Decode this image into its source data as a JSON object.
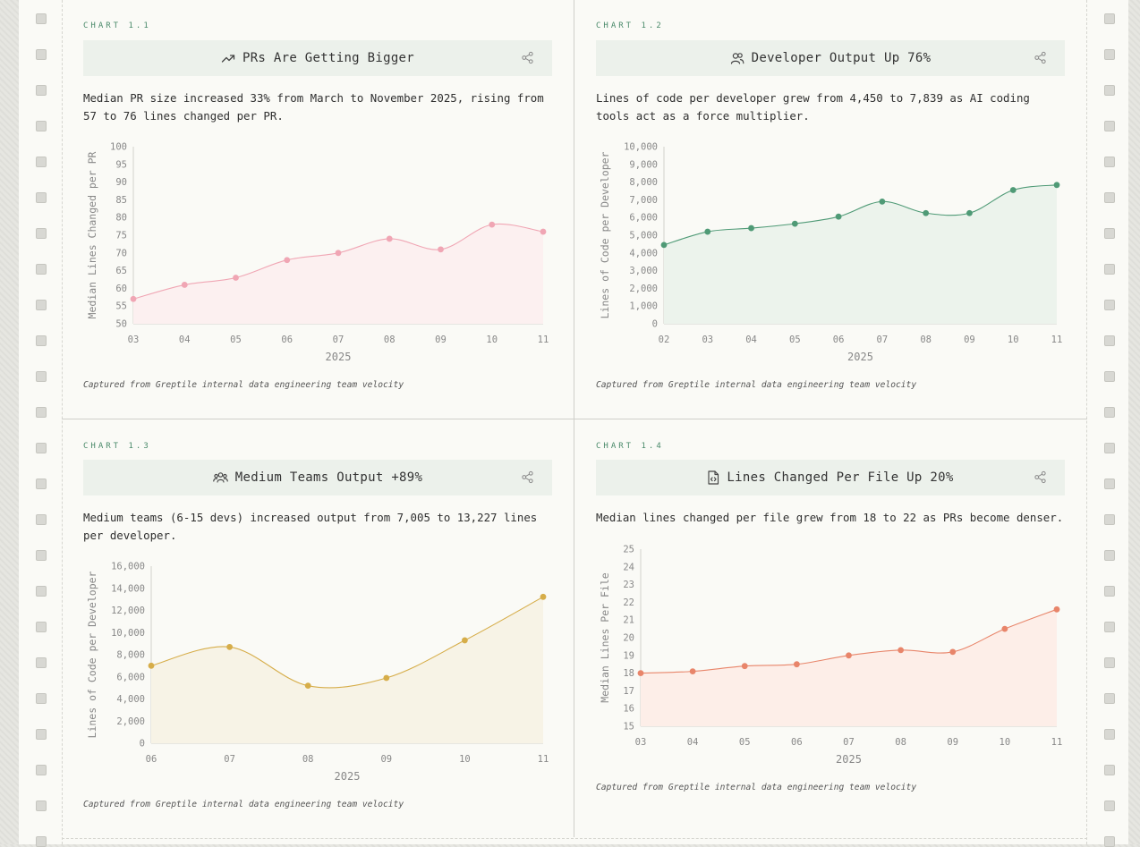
{
  "caption_text": "Captured from Greptile internal data engineering team velocity",
  "panels": [
    {
      "tag": "CHART 1.1",
      "title": "PRs Are Getting Bigger",
      "icon": "trend-up-icon",
      "description": "Median PR size increased 33% from March to November 2025, rising from 57 to 76 lines changed per PR.",
      "caption": "Captured from Greptile internal data engineering team velocity"
    },
    {
      "tag": "CHART 1.2",
      "title": "Developer Output Up 76%",
      "icon": "users-icon",
      "description": "Lines of code per developer grew from 4,450 to 7,839 as AI coding tools act as a force multiplier.",
      "caption": "Captured from Greptile internal data engineering team velocity"
    },
    {
      "tag": "CHART 1.3",
      "title": "Medium Teams Output +89%",
      "icon": "team-icon",
      "description": "Medium teams (6-15 devs) increased output from 7,005 to 13,227 lines per developer.",
      "caption": "Captured from Greptile internal data engineering team velocity"
    },
    {
      "tag": "CHART 1.4",
      "title": "Lines Changed Per File Up 20%",
      "icon": "file-code-icon",
      "description": "Median lines changed per file grew from 18 to 22 as PRs become denser.",
      "caption": "Captured from Greptile internal data engineering team velocity"
    }
  ],
  "chart_data": [
    {
      "type": "area",
      "title": "PRs Are Getting Bigger",
      "xlabel": "2025",
      "ylabel": "Median Lines Changed per PR",
      "categories": [
        "03",
        "04",
        "05",
        "06",
        "07",
        "08",
        "09",
        "10",
        "11"
      ],
      "values": [
        57,
        61,
        63,
        68,
        70,
        74,
        71,
        78,
        76
      ],
      "ylim": [
        50,
        100
      ],
      "yticks": [
        "50",
        "55",
        "60",
        "65",
        "70",
        "75",
        "80",
        "85",
        "90",
        "95",
        "100"
      ],
      "color": "#f0a6b4",
      "fill": "#fcf0f0",
      "grid": false
    },
    {
      "type": "area",
      "title": "Developer Output Up 76%",
      "xlabel": "2025",
      "ylabel": "Lines of Code per Developer",
      "categories": [
        "02",
        "03",
        "04",
        "05",
        "06",
        "07",
        "08",
        "09",
        "10",
        "11"
      ],
      "values": [
        4450,
        5200,
        5400,
        5650,
        6050,
        6900,
        6250,
        6250,
        7550,
        7839
      ],
      "ylim": [
        0,
        10000
      ],
      "yticks": [
        "0",
        "1,000",
        "2,000",
        "3,000",
        "4,000",
        "5,000",
        "6,000",
        "7,000",
        "8,000",
        "9,000",
        "10,000"
      ],
      "color": "#4f9a76",
      "fill": "#ecf3ec",
      "grid": false
    },
    {
      "type": "area",
      "title": "Medium Teams Output +89%",
      "xlabel": "2025",
      "ylabel": "Lines of Code per Developer",
      "categories": [
        "06",
        "07",
        "08",
        "09",
        "10",
        "11"
      ],
      "values": [
        7005,
        8700,
        5200,
        5900,
        9300,
        13227
      ],
      "ylim": [
        0,
        16000
      ],
      "yticks": [
        "0",
        "2,000",
        "4,000",
        "6,000",
        "8,000",
        "10,000",
        "12,000",
        "14,000",
        "16,000"
      ],
      "color": "#d6ad49",
      "fill": "#f7f3e6",
      "grid": false
    },
    {
      "type": "area",
      "title": "Lines Changed Per File Up 20%",
      "xlabel": "2025",
      "ylabel": "Median Lines Per File",
      "categories": [
        "03",
        "04",
        "05",
        "06",
        "07",
        "08",
        "09",
        "10",
        "11"
      ],
      "values": [
        18,
        18.1,
        18.4,
        18.5,
        19,
        19.3,
        19.2,
        20.5,
        21.6
      ],
      "ylim": [
        15,
        25
      ],
      "yticks": [
        "15",
        "16",
        "17",
        "18",
        "19",
        "20",
        "21",
        "22",
        "23",
        "24",
        "25"
      ],
      "color": "#e8856a",
      "fill": "#fdeee8",
      "grid": false
    }
  ]
}
